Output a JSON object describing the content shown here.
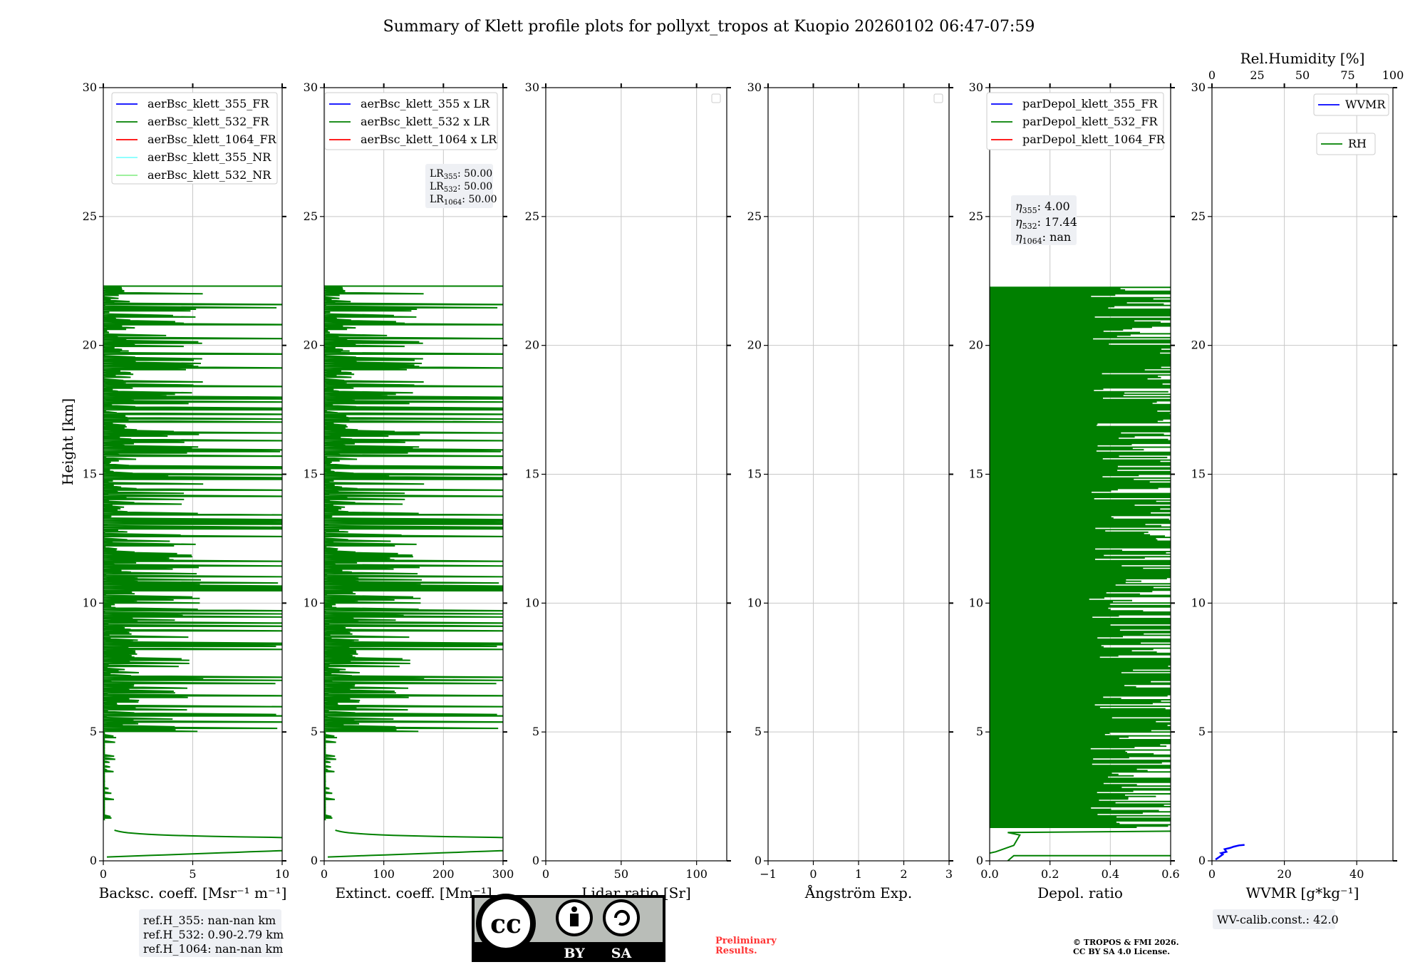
{
  "title": "Summary of Klett profile plots for pollyxt_tropos at Kuopio 20260102 06:47-07:59",
  "colors": {
    "green": "#008000",
    "blue": "#0000ff",
    "red": "#ff0000",
    "cyan": "#80ffff",
    "lightgreen": "#90ee90",
    "grid": "#c8c8c8",
    "notebox": "#eef0f4",
    "preliminary": "#ff3333"
  },
  "shared_y": {
    "label": "Height [km]",
    "ticks": [
      "0",
      "5",
      "10",
      "15",
      "20",
      "25",
      "30"
    ]
  },
  "notes": {
    "lr_lines": [
      "LR",
      "LR",
      "LR"
    ],
    "lr_subs": [
      "355",
      "532",
      "1064"
    ],
    "lr_values": [
      ": 50.00",
      ": 50.00",
      ": 50.00"
    ],
    "eta_symbol": "η",
    "eta_subs": [
      "355",
      "532",
      "1064"
    ],
    "eta_values": [
      ": 4.00",
      ": 17.44",
      ": nan"
    ],
    "ref_lines": [
      "ref.H_355: nan-nan km",
      "ref.H_532: 0.90-2.79 km",
      "ref.H_1064: nan-nan km"
    ],
    "wv_calib": "WV-calib.const.: 42.0",
    "preliminary": [
      "Preliminary",
      "Results."
    ],
    "copyright": [
      "© TROPOS & FMI 2026.",
      "CC BY SA 4.0 License."
    ],
    "license_badge": [
      "cc",
      "BY",
      "SA"
    ]
  },
  "chart_data": [
    {
      "type": "line",
      "panel": "backscatter",
      "xlabel": "Backsc. coeff. [Msr⁻¹ m⁻¹]",
      "xlim": [
        0,
        10
      ],
      "xticks": [
        "0",
        "5",
        "10"
      ],
      "ylim": [
        0,
        30
      ],
      "legend": [
        "aerBsc_klett_355_FR",
        "aerBsc_klett_532_FR",
        "aerBsc_klett_1064_FR",
        "aerBsc_klett_355_NR",
        "aerBsc_klett_532_NR"
      ],
      "legend_placement": "top-left",
      "series": [
        {
          "name": "aerBsc_klett_532_FR",
          "note": "noisy profile, near-surface values up to ~10 below 1.2 km; spiky 0–10 above 5 km"
        }
      ]
    },
    {
      "type": "line",
      "panel": "extinction",
      "xlabel": "Extinct. coeff. [Mm⁻¹]",
      "xlim": [
        0,
        300
      ],
      "xticks": [
        "0",
        "100",
        "200",
        "300"
      ],
      "ylim": [
        0,
        30
      ],
      "legend": [
        "aerBsc_klett_355 x LR",
        "aerBsc_klett_532 x LR",
        "aerBsc_klett_1064 x LR"
      ],
      "legend_placement": "top-left",
      "series": [
        {
          "name": "aerBsc_klett_532 x LR",
          "note": "same profile as backscatter scaled by LR 50"
        }
      ]
    },
    {
      "type": "line",
      "panel": "lidar_ratio",
      "xlabel": "Lidar ratio [Sr]",
      "xlim": [
        0,
        120
      ],
      "xticks": [
        "0",
        "50",
        "100"
      ],
      "ylim": [
        0,
        30
      ],
      "legend": [],
      "legend_placement": "top-right",
      "series": []
    },
    {
      "type": "line",
      "panel": "angstrom",
      "xlabel": "Ångström Exp.",
      "xlim": [
        -1,
        3
      ],
      "xticks": [
        "−1",
        "0",
        "1",
        "2",
        "3"
      ],
      "ylim": [
        0,
        30
      ],
      "legend": [],
      "legend_placement": "top-right",
      "series": []
    },
    {
      "type": "line",
      "panel": "depol",
      "xlabel": "Depol. ratio",
      "xlim": [
        0,
        0.6
      ],
      "xticks": [
        "0.0",
        "0.2",
        "0.4",
        "0.6"
      ],
      "ylim": [
        0,
        30
      ],
      "legend": [
        "parDepol_klett_355_FR",
        "parDepol_klett_532_FR",
        "parDepol_klett_1064_FR"
      ],
      "legend_placement": "top-left",
      "series": [
        {
          "name": "parDepol_klett_532_FR",
          "note": "noisy 0–0.6 from 0 to 22.3 km"
        }
      ]
    },
    {
      "type": "line",
      "panel": "wvmr",
      "xlabel": "WVMR [g*kg⁻¹]",
      "xlim": [
        0,
        50
      ],
      "xticks": [
        "0",
        "20",
        "40"
      ],
      "top_xlabel": "Rel.Humidity [%]",
      "top_xlim": [
        0,
        100
      ],
      "top_xticks": [
        "0",
        "25",
        "50",
        "75",
        "100"
      ],
      "ylim": [
        0,
        30
      ],
      "legend": [
        "WVMR",
        "RH"
      ],
      "legend_placement": "top-right",
      "series": [
        {
          "name": "WVMR",
          "x": [
            1.0,
            2.0,
            3.0,
            2.5,
            4.0,
            3.5,
            5.0,
            6.0,
            7.5,
            9.0
          ],
          "y": [
            0.05,
            0.15,
            0.25,
            0.3,
            0.35,
            0.45,
            0.5,
            0.55,
            0.6,
            0.62
          ]
        }
      ]
    }
  ]
}
